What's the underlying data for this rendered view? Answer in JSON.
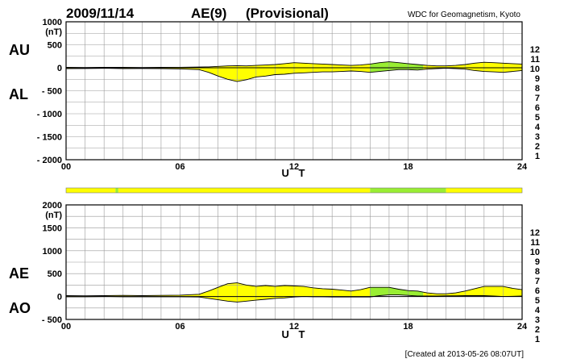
{
  "header": {
    "date": "2009/11/14",
    "index": "AE(9)",
    "status": "(Provisional)",
    "organization": "WDC for Geomagnetism, Kyoto"
  },
  "footer": {
    "created": "[Created at 2013-05-26 08:07UT]"
  },
  "station_counts": [
    "12",
    "11",
    "10",
    "9",
    "8",
    "7",
    "6",
    "5",
    "4",
    "3",
    "2",
    "1"
  ],
  "count_colors": [
    "#ff0090",
    "#e00000",
    "#ff9900",
    "#ffee00",
    "#99ff33",
    "#00ccff",
    "#0055ff",
    "#2200aa",
    "#cc00cc",
    "#000000",
    "#777777",
    "#bbbbbb"
  ],
  "fill_colors": {
    "yellow": "#ffff00",
    "green": "#99ee33"
  },
  "chart_data": [
    {
      "type": "area",
      "panel": "AU/AL",
      "series_labels": {
        "upper": "AU",
        "lower": "AL"
      },
      "x_ticks": [
        "00",
        "06",
        "12",
        "18",
        "24"
      ],
      "xlim": [
        0,
        24
      ],
      "xlabel": "U T",
      "ylim": [
        -2000,
        1000
      ],
      "y_ticks": [
        "1000",
        "500",
        "0",
        "- 500",
        "- 1000",
        "- 1500",
        "- 2000"
      ],
      "y_tick_values": [
        1000,
        500,
        0,
        -500,
        -1000,
        -1500,
        -2000
      ],
      "ylabel_unit": "(nT)",
      "grid": true,
      "series": [
        {
          "name": "AU",
          "x": [
            0,
            1,
            2,
            3,
            4,
            5,
            6,
            7,
            7.5,
            8,
            8.5,
            9,
            9.5,
            10,
            10.5,
            11,
            11.5,
            12,
            12.5,
            13,
            13.5,
            14,
            14.5,
            15,
            15.5,
            16,
            16.5,
            17,
            17.5,
            18,
            18.5,
            19,
            19.5,
            20,
            20.5,
            21,
            21.5,
            22,
            22.5,
            23,
            23.5,
            24
          ],
          "y": [
            10,
            5,
            10,
            8,
            5,
            10,
            10,
            15,
            20,
            30,
            40,
            45,
            40,
            50,
            60,
            70,
            90,
            110,
            100,
            90,
            80,
            70,
            60,
            50,
            60,
            80,
            110,
            130,
            110,
            90,
            70,
            50,
            40,
            40,
            50,
            70,
            100,
            120,
            110,
            100,
            90,
            80
          ]
        },
        {
          "name": "AL",
          "x": [
            0,
            1,
            2,
            3,
            4,
            5,
            6,
            7,
            7.5,
            8,
            8.5,
            9,
            9.5,
            10,
            10.5,
            11,
            11.5,
            12,
            12.5,
            13,
            13.5,
            14,
            14.5,
            15,
            15.5,
            16,
            16.5,
            17,
            17.5,
            18,
            18.5,
            19,
            19.5,
            20,
            20.5,
            21,
            21.5,
            22,
            22.5,
            23,
            23.5,
            24
          ],
          "y": [
            -20,
            -15,
            -10,
            -20,
            -15,
            -20,
            -25,
            -40,
            -100,
            -180,
            -250,
            -300,
            -260,
            -200,
            -180,
            -150,
            -140,
            -120,
            -110,
            -100,
            -90,
            -90,
            -80,
            -70,
            -80,
            -100,
            -80,
            -60,
            -40,
            -40,
            -50,
            -30,
            -20,
            -10,
            -20,
            -30,
            -60,
            -80,
            -90,
            -100,
            -80,
            -60
          ]
        }
      ],
      "fill_segments": [
        {
          "from": 0,
          "to": 16,
          "color": "yellow"
        },
        {
          "from": 16,
          "to": 18.8,
          "color": "green"
        },
        {
          "from": 18.8,
          "to": 24,
          "color": "yellow"
        }
      ]
    },
    {
      "type": "area",
      "panel": "AE/AO",
      "series_labels": {
        "upper": "AE",
        "lower": "AO"
      },
      "x_ticks": [
        "00",
        "06",
        "12",
        "18",
        "24"
      ],
      "xlim": [
        0,
        24
      ],
      "xlabel": "U T",
      "ylim": [
        -500,
        2000
      ],
      "y_ticks": [
        "2000",
        "1500",
        "1000",
        "500",
        "0",
        "- 500"
      ],
      "y_tick_values": [
        2000,
        1500,
        1000,
        500,
        0,
        -500
      ],
      "ylabel_unit": "(nT)",
      "grid": true,
      "series": [
        {
          "name": "AE",
          "x": [
            0,
            1,
            2,
            3,
            4,
            5,
            6,
            7,
            7.5,
            8,
            8.5,
            9,
            9.5,
            10,
            10.5,
            11,
            11.5,
            12,
            12.5,
            13,
            13.5,
            14,
            14.5,
            15,
            15.5,
            16,
            16.5,
            17,
            17.5,
            18,
            18.5,
            19,
            19.5,
            20,
            20.5,
            21,
            21.5,
            22,
            22.5,
            23,
            23.5,
            24
          ],
          "y": [
            20,
            15,
            20,
            25,
            20,
            25,
            30,
            50,
            120,
            200,
            280,
            300,
            250,
            220,
            240,
            220,
            240,
            230,
            220,
            190,
            170,
            160,
            140,
            120,
            150,
            200,
            200,
            200,
            160,
            130,
            120,
            80,
            60,
            60,
            80,
            120,
            170,
            220,
            220,
            220,
            180,
            150
          ]
        },
        {
          "name": "AO",
          "x": [
            0,
            1,
            2,
            3,
            4,
            5,
            6,
            7,
            7.5,
            8,
            8.5,
            9,
            9.5,
            10,
            10.5,
            11,
            11.5,
            12,
            12.5,
            13,
            13.5,
            14,
            14.5,
            15,
            15.5,
            16,
            16.5,
            17,
            17.5,
            18,
            18.5,
            19,
            19.5,
            20,
            20.5,
            21,
            21.5,
            22,
            22.5,
            23,
            23.5,
            24
          ],
          "y": [
            -5,
            -5,
            0,
            -5,
            -5,
            -5,
            -5,
            -10,
            -40,
            -70,
            -100,
            -120,
            -100,
            -80,
            -60,
            -40,
            -30,
            -10,
            0,
            -5,
            -5,
            -10,
            -10,
            -10,
            -10,
            -10,
            20,
            35,
            35,
            25,
            10,
            10,
            10,
            15,
            15,
            20,
            20,
            20,
            10,
            0,
            5,
            10
          ]
        }
      ],
      "fill_segments": [
        {
          "from": 0,
          "to": 16,
          "color": "yellow"
        },
        {
          "from": 16,
          "to": 18.8,
          "color": "green"
        },
        {
          "from": 18.8,
          "to": 24,
          "color": "yellow"
        }
      ]
    }
  ],
  "coverage_bar": [
    {
      "from": 0,
      "to": 2.6,
      "color": "yellow"
    },
    {
      "from": 2.6,
      "to": 2.75,
      "color": "green"
    },
    {
      "from": 2.75,
      "to": 16,
      "color": "yellow"
    },
    {
      "from": 16,
      "to": 20,
      "color": "green"
    },
    {
      "from": 20,
      "to": 24,
      "color": "yellow"
    }
  ]
}
